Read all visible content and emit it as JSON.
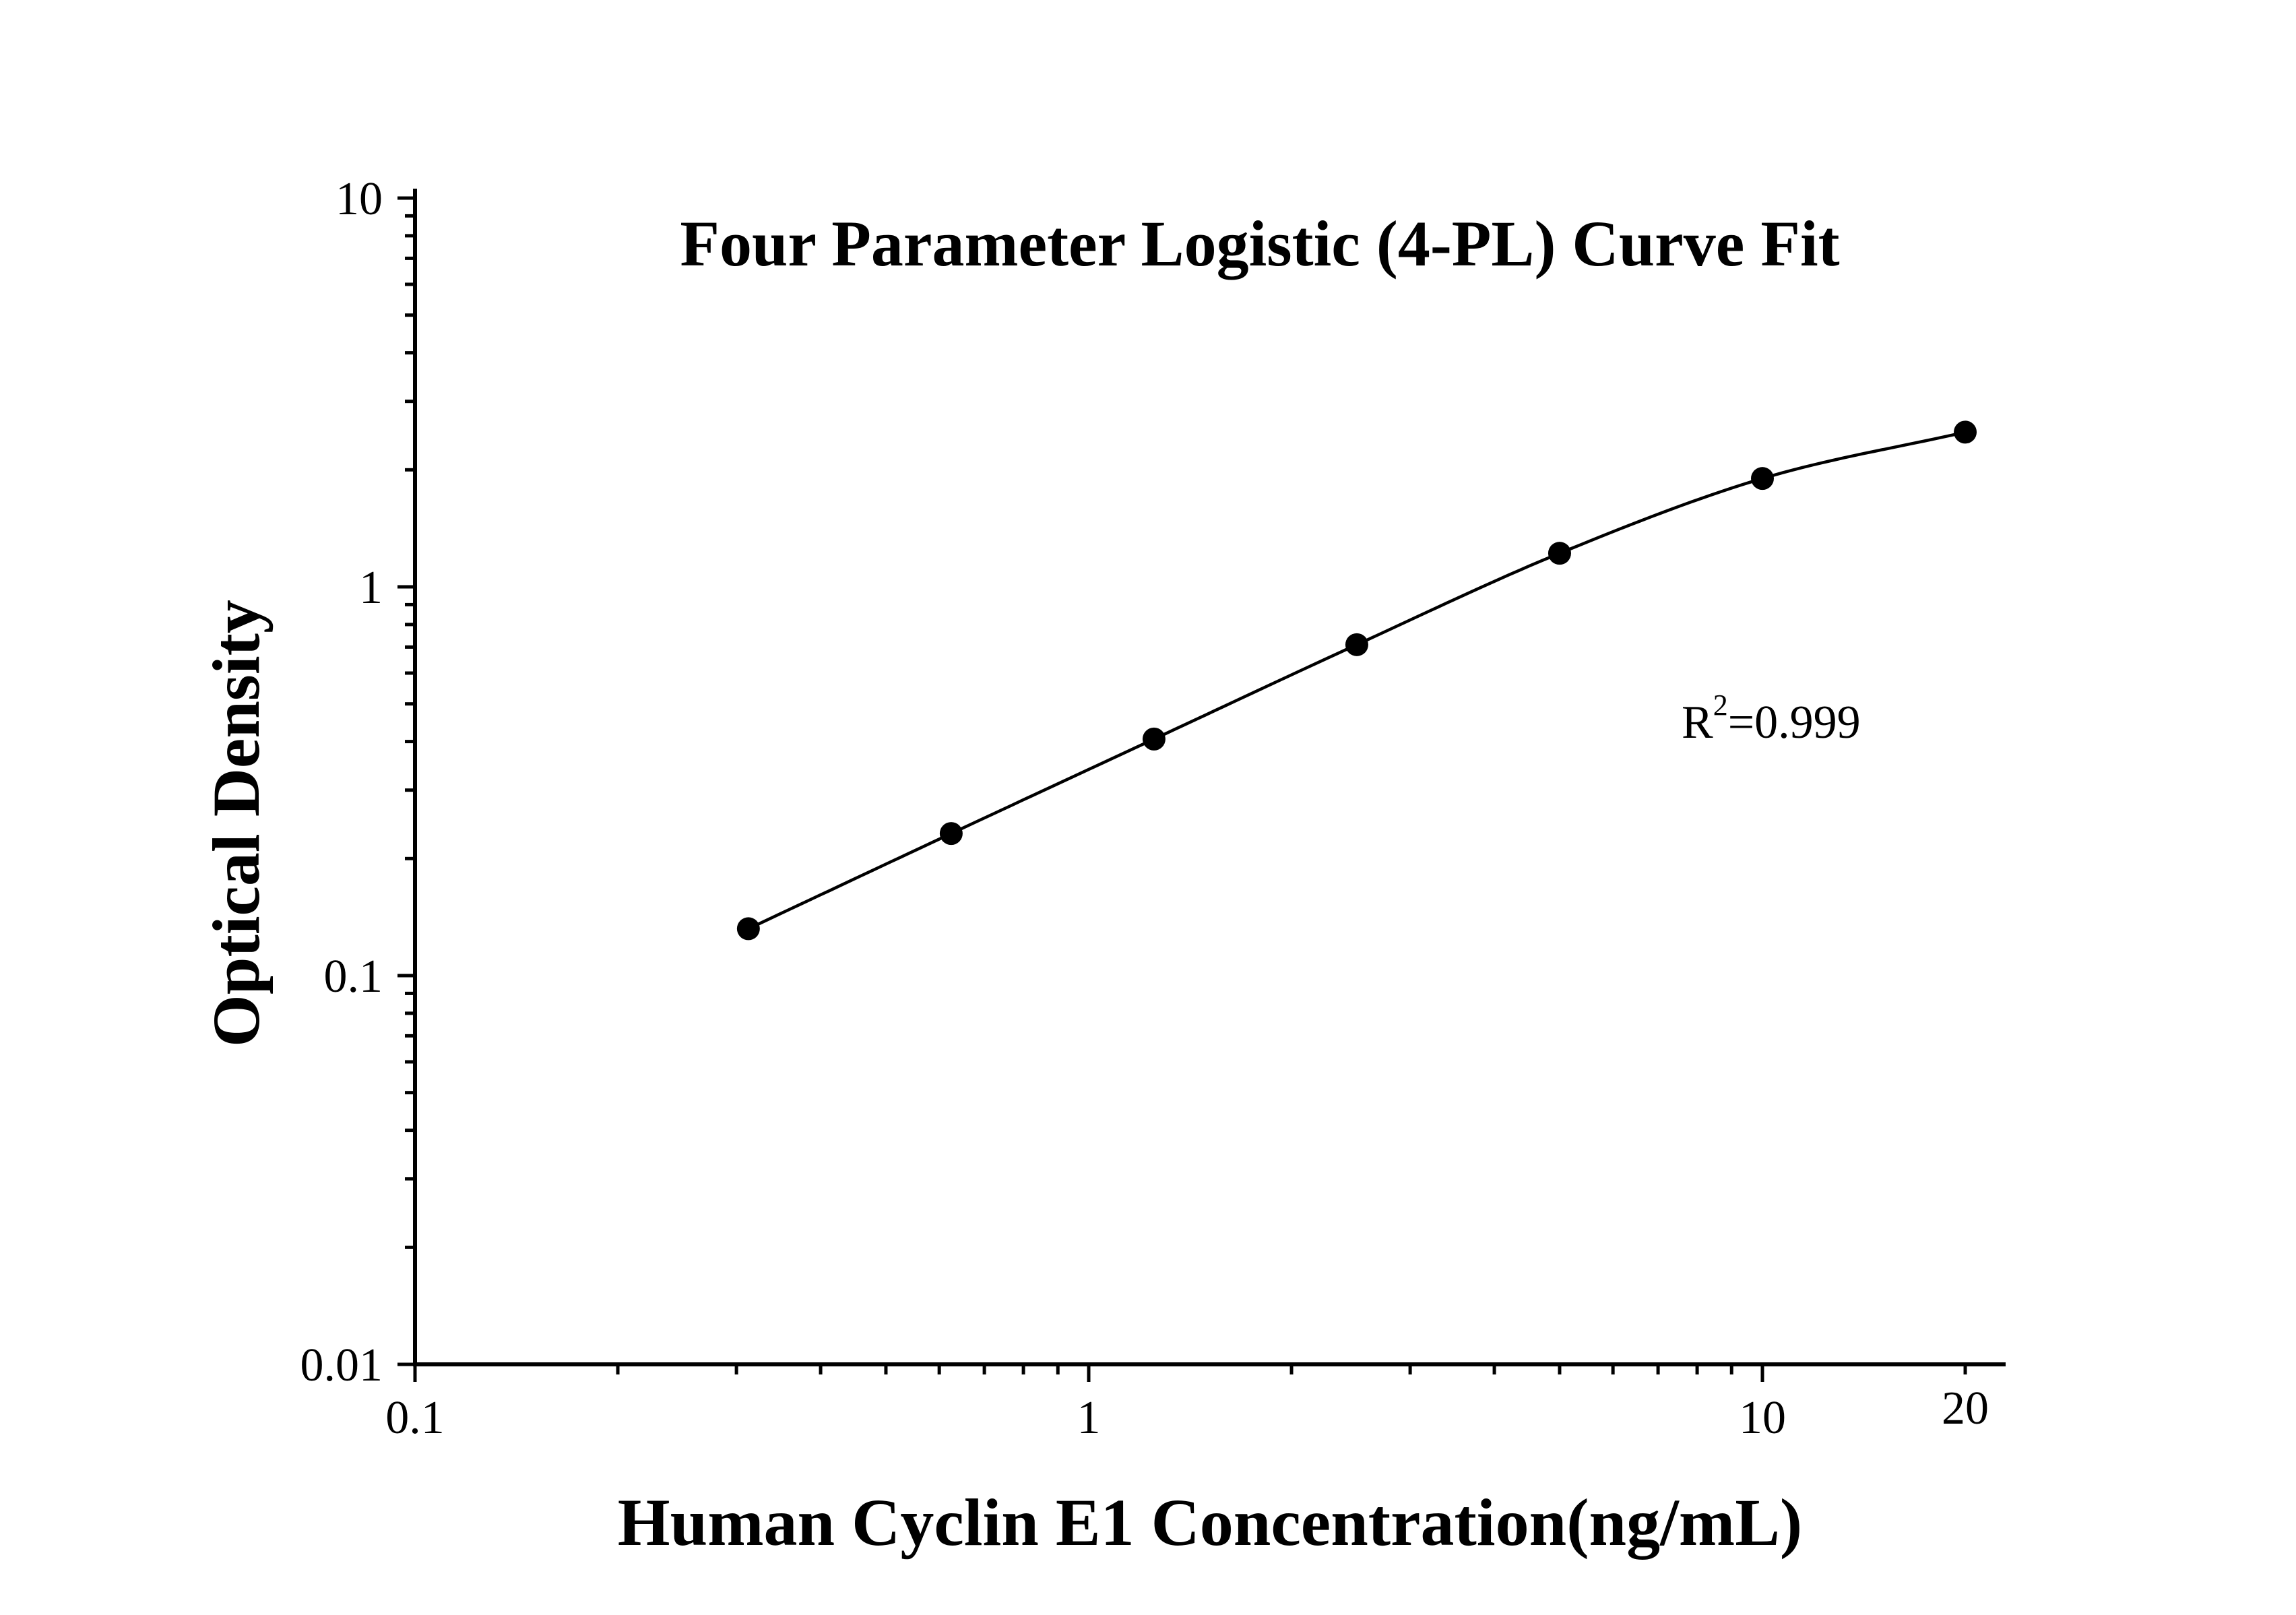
{
  "chart_data": {
    "type": "scatter",
    "title": "Four Parameter Logistic (4-PL) Curve Fit",
    "xlabel": "Human Cyclin E1 Concentration(ng/mL)",
    "ylabel": "Optical Density",
    "xscale": "log",
    "yscale": "log",
    "xlim": [
      0.1,
      25
    ],
    "ylim": [
      0.01,
      10
    ],
    "xticks": [
      "0.1",
      "1",
      "10",
      "20"
    ],
    "yticks": [
      "0.01",
      "0.1",
      "1",
      "10"
    ],
    "grid": false,
    "legend": "none",
    "annotation": {
      "base": "R",
      "superscript": "2",
      "rest": "=0.999"
    },
    "series": [
      {
        "points": [
          {
            "x": 0.3125,
            "y": 0.132
          },
          {
            "x": 0.625,
            "y": 0.232
          },
          {
            "x": 1.25,
            "y": 0.406
          },
          {
            "x": 2.5,
            "y": 0.71
          },
          {
            "x": 5,
            "y": 1.22
          },
          {
            "x": 10,
            "y": 1.9
          },
          {
            "x": 20,
            "y": 2.5
          }
        ],
        "fit": "4-PL"
      }
    ]
  }
}
